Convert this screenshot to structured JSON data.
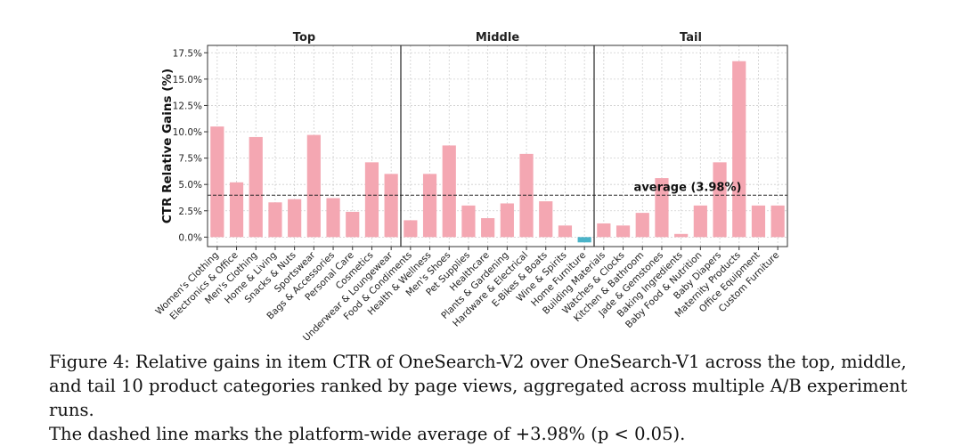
{
  "chart_data": {
    "type": "bar",
    "ylabel": "CTR Relative Gains (%)",
    "xlabel": "",
    "ylim": [
      -0.9,
      18.2
    ],
    "yticks": [
      0.0,
      2.5,
      5.0,
      7.5,
      10.0,
      12.5,
      15.0,
      17.5
    ],
    "ytick_labels": [
      "0.0%",
      "2.5%",
      "5.0%",
      "7.5%",
      "10.0%",
      "12.5%",
      "15.0%",
      "17.5%"
    ],
    "grid": true,
    "positive_color": "#f4a7b2",
    "negative_color": "#4ab3c8",
    "groups": [
      {
        "name": "Top",
        "start": 0,
        "end": 9
      },
      {
        "name": "Middle",
        "start": 10,
        "end": 19
      },
      {
        "name": "Tail",
        "start": 20,
        "end": 29
      }
    ],
    "categories": [
      "Women's Clothing",
      "Electronics & Office",
      "Men's Clothing",
      "Home & Living",
      "Snacks & Nuts",
      "Sportswear",
      "Bags & Accessories",
      "Personal Care",
      "Cosmetics",
      "Underwear & Loungewear",
      "Food & Condiments",
      "Health & Wellness",
      "Men's Shoes",
      "Pet Supplies",
      "Healthcare",
      "Plants & Gardening",
      "Hardware & Electrical",
      "E-Bikes & Boats",
      "Wine & Spirits",
      "Home Furniture",
      "Building Materials",
      "Watches & Clocks",
      "Kitchen & Bathroom",
      "Jade & Gemstones",
      "Baking Ingredients",
      "Baby Food & Nutrition",
      "Baby Diapers",
      "Maternity Products",
      "Office Equipment",
      "Custom Furniture"
    ],
    "values": [
      10.5,
      5.2,
      9.5,
      3.3,
      3.6,
      9.7,
      3.7,
      2.4,
      7.1,
      6.0,
      1.6,
      6.0,
      8.7,
      3.0,
      1.8,
      3.2,
      7.9,
      3.4,
      1.1,
      -0.5,
      1.3,
      1.1,
      2.3,
      5.6,
      0.3,
      3.0,
      7.1,
      16.7,
      3.0,
      3.0
    ],
    "average": {
      "value": 3.98,
      "label": "average (3.98%)"
    }
  },
  "caption": {
    "lines": [
      "Figure 4: Relative gains in item CTR of OneSearch-V2 over OneSearch-V1 across the top, middle,",
      "and tail 10 product categories ranked by page views, aggregated across multiple A/B experiment runs.",
      "The dashed line marks the platform-wide average of +3.98% (p < 0.05)."
    ]
  }
}
